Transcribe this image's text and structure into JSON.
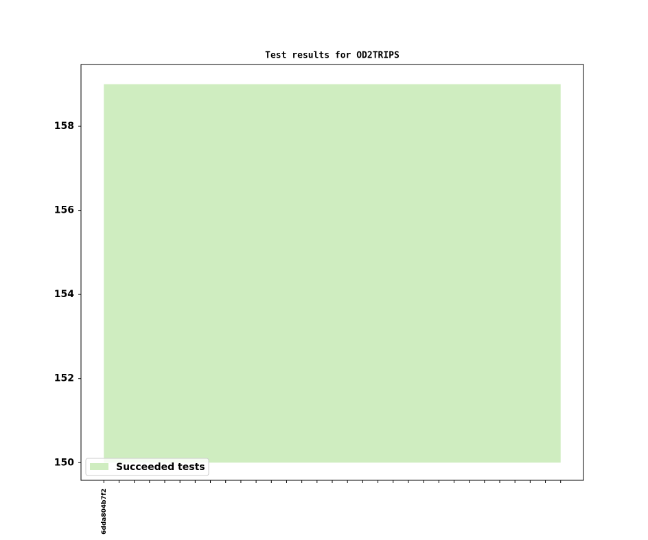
{
  "chart_data": {
    "type": "area",
    "title": "Test results for OD2TRIPS",
    "x": [
      "6dda804b7f2",
      null,
      null,
      null,
      null,
      null,
      null,
      null,
      null,
      null,
      null,
      null,
      null,
      null,
      null,
      null,
      null,
      null,
      null,
      null,
      null,
      null,
      null,
      null,
      null,
      null,
      null,
      null,
      null,
      null,
      null
    ],
    "series": [
      {
        "name": "Succeeded tests",
        "color": "#cfedc0",
        "baseline": 150,
        "values": [
          159,
          159,
          159,
          159,
          159,
          159,
          159,
          159,
          159,
          159,
          159,
          159,
          159,
          159,
          159,
          159,
          159,
          159,
          159,
          159,
          159,
          159,
          159,
          159,
          159,
          159,
          159,
          159,
          159,
          159,
          159
        ]
      }
    ],
    "ylim": [
      149.58,
      159.47
    ],
    "yticks": [
      150,
      152,
      154,
      156,
      158
    ],
    "legend": "lower left"
  }
}
